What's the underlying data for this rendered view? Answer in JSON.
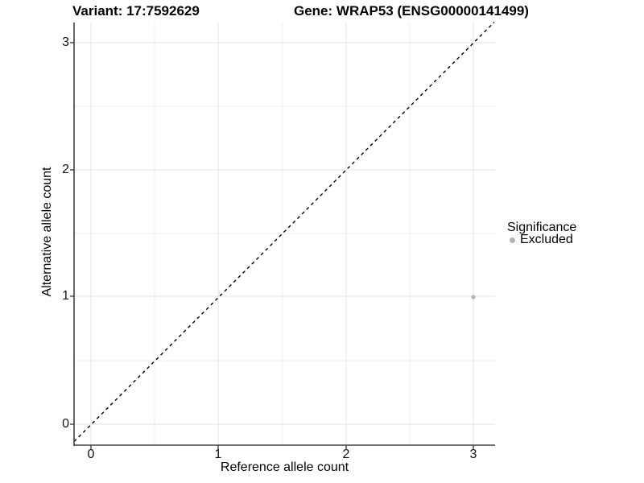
{
  "chart_data": {
    "type": "scatter",
    "titles": [
      "Variant: 17:7592629",
      "Gene: WRAP53 (ENSG00000141499)"
    ],
    "xlabel": "Reference allele count",
    "ylabel": "Alternative allele count",
    "x_ticks": [
      0,
      1,
      2,
      3
    ],
    "y_ticks": [
      0,
      1,
      2,
      3
    ],
    "xlim": [
      -0.13,
      3.17
    ],
    "ylim": [
      -0.16,
      3.16
    ],
    "grid": "major and minor gridlines, light gray, white background",
    "diagonal_reference_line": {
      "equation": "y = x",
      "style": "dashed",
      "color": "#000000"
    },
    "series": [
      {
        "name": "Excluded",
        "color": "#b3b3b3",
        "points": [
          {
            "x": 3,
            "y": 1
          }
        ]
      }
    ],
    "legend": {
      "title": "Significance",
      "position": "right",
      "entries": [
        {
          "label": "Excluded",
          "marker_color": "#b3b3b3"
        }
      ]
    }
  },
  "colors": {
    "background": "#ffffff",
    "axis_line": "#404040",
    "grid_major": "#e3e3e3",
    "grid_minor": "#efefef",
    "point": "#b3b3b3",
    "text": "#000000"
  }
}
